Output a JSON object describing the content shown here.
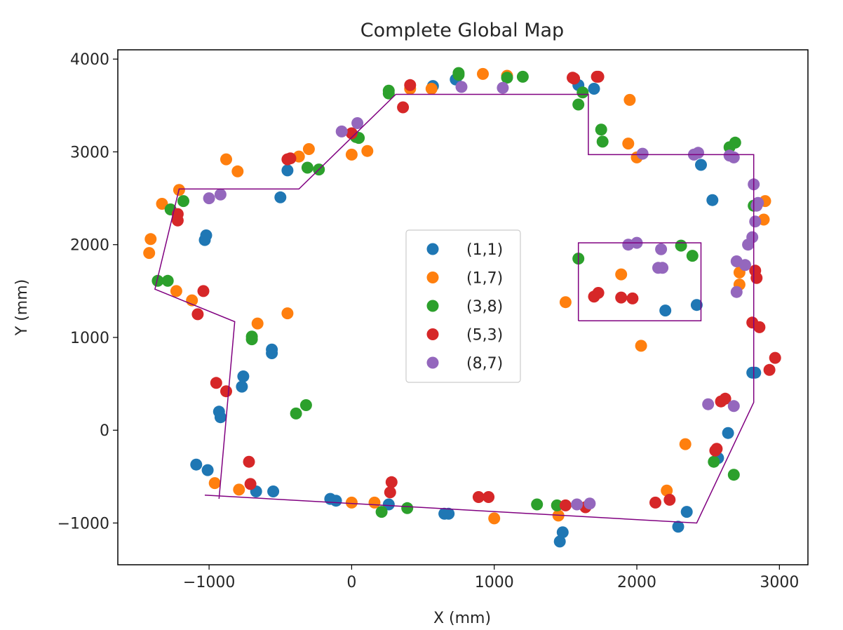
{
  "chart_data": {
    "type": "scatter",
    "title": "Complete Global Map",
    "xlabel": "X (mm)",
    "ylabel": "Y (mm)",
    "xlim": [
      -1640,
      3200
    ],
    "ylim": [
      -1450,
      4100
    ],
    "xticks": [
      -1000,
      0,
      1000,
      2000,
      3000
    ],
    "yticks": [
      -1000,
      0,
      1000,
      2000,
      3000,
      4000
    ],
    "grid": false,
    "legend_position": "center",
    "series": [
      {
        "name": "(1,1)",
        "color": "#1f77b4",
        "points": [
          [
            -1030,
            2050
          ],
          [
            -1020,
            2100
          ],
          [
            -450,
            2800
          ],
          [
            -500,
            2510
          ],
          [
            -560,
            870
          ],
          [
            -560,
            830
          ],
          [
            -760,
            580
          ],
          [
            -770,
            470
          ],
          [
            -930,
            200
          ],
          [
            -920,
            140
          ],
          [
            -1090,
            -370
          ],
          [
            -1010,
            -430
          ],
          [
            -670,
            -660
          ],
          [
            -550,
            -660
          ],
          [
            -150,
            -740
          ],
          [
            -110,
            -760
          ],
          [
            260,
            -800
          ],
          [
            650,
            -900
          ],
          [
            680,
            -900
          ],
          [
            1460,
            -1200
          ],
          [
            1480,
            -1100
          ],
          [
            2290,
            -1040
          ],
          [
            2350,
            -880
          ],
          [
            2640,
            -30
          ],
          [
            2570,
            -300
          ],
          [
            2810,
            620
          ],
          [
            2830,
            620
          ],
          [
            2450,
            2860
          ],
          [
            2530,
            2480
          ],
          [
            2200,
            1290
          ],
          [
            2420,
            1350
          ],
          [
            1700,
            3680
          ],
          [
            1590,
            3720
          ],
          [
            570,
            3710
          ],
          [
            730,
            3780
          ]
        ]
      },
      {
        "name": "(1,7)",
        "color": "#ff7f0e",
        "points": [
          [
            -1410,
            2060
          ],
          [
            -1420,
            1910
          ],
          [
            -1330,
            2440
          ],
          [
            -1210,
            2590
          ],
          [
            -1230,
            1500
          ],
          [
            -1120,
            1400
          ],
          [
            -880,
            2920
          ],
          [
            -800,
            2790
          ],
          [
            -370,
            2950
          ],
          [
            -300,
            3030
          ],
          [
            0,
            2970
          ],
          [
            110,
            3010
          ],
          [
            410,
            3680
          ],
          [
            560,
            3680
          ],
          [
            920,
            3840
          ],
          [
            1090,
            3820
          ],
          [
            1950,
            3560
          ],
          [
            1940,
            3090
          ],
          [
            2000,
            2940
          ],
          [
            1890,
            1680
          ],
          [
            2030,
            910
          ],
          [
            1500,
            1380
          ],
          [
            -660,
            1150
          ],
          [
            -450,
            1260
          ],
          [
            -960,
            -570
          ],
          [
            -790,
            -640
          ],
          [
            0,
            -780
          ],
          [
            160,
            -780
          ],
          [
            1000,
            -950
          ],
          [
            1450,
            -920
          ],
          [
            2340,
            -150
          ],
          [
            2210,
            -650
          ],
          [
            2720,
            1700
          ],
          [
            2900,
            2470
          ],
          [
            2890,
            2270
          ],
          [
            2720,
            1570
          ]
        ]
      },
      {
        "name": "(3,8)",
        "color": "#2ca02c",
        "points": [
          [
            -1360,
            1610
          ],
          [
            -1290,
            1610
          ],
          [
            -1270,
            2380
          ],
          [
            -1180,
            2470
          ],
          [
            -310,
            2830
          ],
          [
            -230,
            2810
          ],
          [
            30,
            3160
          ],
          [
            50,
            3150
          ],
          [
            260,
            3660
          ],
          [
            260,
            3630
          ],
          [
            750,
            3850
          ],
          [
            750,
            3830
          ],
          [
            1090,
            3800
          ],
          [
            1200,
            3810
          ],
          [
            1590,
            3510
          ],
          [
            1620,
            3640
          ],
          [
            1750,
            3240
          ],
          [
            1760,
            3110
          ],
          [
            2650,
            3050
          ],
          [
            2690,
            3100
          ],
          [
            2820,
            2420
          ],
          [
            2310,
            1990
          ],
          [
            2390,
            1880
          ],
          [
            1590,
            1850
          ],
          [
            -700,
            1010
          ],
          [
            -700,
            980
          ],
          [
            -390,
            180
          ],
          [
            -320,
            270
          ],
          [
            210,
            -880
          ],
          [
            390,
            -840
          ],
          [
            1300,
            -800
          ],
          [
            1440,
            -810
          ],
          [
            2540,
            -340
          ],
          [
            2680,
            -480
          ]
        ]
      },
      {
        "name": "(5,3)",
        "color": "#d62728",
        "points": [
          [
            -1220,
            2330
          ],
          [
            -1220,
            2260
          ],
          [
            -1040,
            1500
          ],
          [
            -1080,
            1250
          ],
          [
            -450,
            2920
          ],
          [
            -430,
            2930
          ],
          [
            0,
            3200
          ],
          [
            360,
            3480
          ],
          [
            410,
            3720
          ],
          [
            1550,
            3800
          ],
          [
            1560,
            3790
          ],
          [
            1720,
            3810
          ],
          [
            1730,
            3810
          ],
          [
            -950,
            510
          ],
          [
            -880,
            420
          ],
          [
            -720,
            -340
          ],
          [
            -710,
            -580
          ],
          [
            280,
            -560
          ],
          [
            270,
            -670
          ],
          [
            890,
            -720
          ],
          [
            960,
            -720
          ],
          [
            1500,
            -810
          ],
          [
            1640,
            -830
          ],
          [
            2130,
            -780
          ],
          [
            2230,
            -750
          ],
          [
            2550,
            -220
          ],
          [
            2560,
            -200
          ],
          [
            2590,
            310
          ],
          [
            2620,
            340
          ],
          [
            2830,
            1720
          ],
          [
            2840,
            1640
          ],
          [
            2810,
            1160
          ],
          [
            2860,
            1110
          ],
          [
            2930,
            650
          ],
          [
            2970,
            780
          ],
          [
            1700,
            1440
          ],
          [
            1730,
            1480
          ],
          [
            1890,
            1430
          ],
          [
            1970,
            1420
          ]
        ]
      },
      {
        "name": "(8,7)",
        "color": "#9467bd",
        "points": [
          [
            -1000,
            2500
          ],
          [
            -920,
            2540
          ],
          [
            -70,
            3220
          ],
          [
            40,
            3310
          ],
          [
            770,
            3700
          ],
          [
            1060,
            3690
          ],
          [
            2040,
            2980
          ],
          [
            2400,
            2970
          ],
          [
            2430,
            2990
          ],
          [
            2680,
            2940
          ],
          [
            2650,
            2960
          ],
          [
            2820,
            2650
          ],
          [
            2840,
            2420
          ],
          [
            2850,
            2450
          ],
          [
            2830,
            2250
          ],
          [
            2810,
            2080
          ],
          [
            2780,
            2000
          ],
          [
            2700,
            1820
          ],
          [
            2760,
            1780
          ],
          [
            2700,
            1490
          ],
          [
            1940,
            2000
          ],
          [
            2000,
            2020
          ],
          [
            2170,
            1950
          ],
          [
            2150,
            1750
          ],
          [
            2180,
            1750
          ],
          [
            2500,
            280
          ],
          [
            2680,
            260
          ],
          [
            1580,
            -800
          ],
          [
            1670,
            -790
          ]
        ]
      }
    ],
    "lines": [
      {
        "color": "#800080",
        "points": [
          [
            -930,
            -740
          ],
          [
            -820,
            1170
          ],
          [
            -1380,
            1520
          ],
          [
            -1210,
            2600
          ],
          [
            -370,
            2600
          ],
          [
            310,
            3620
          ],
          [
            1660,
            3620
          ],
          [
            1660,
            2970
          ],
          [
            2820,
            2970
          ],
          [
            2820,
            300
          ],
          [
            2420,
            -1000
          ],
          [
            -1030,
            -700
          ]
        ]
      },
      {
        "color": "#800080",
        "points": [
          [
            1590,
            1180
          ],
          [
            2450,
            1180
          ],
          [
            2450,
            2020
          ],
          [
            1590,
            2020
          ],
          [
            1590,
            1180
          ]
        ]
      }
    ]
  }
}
